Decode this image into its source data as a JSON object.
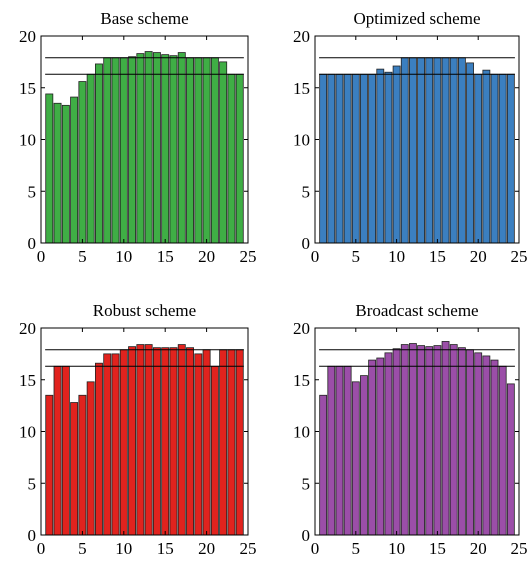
{
  "chart_data": [
    {
      "type": "bar",
      "title": "Base scheme",
      "color": "#3fae45",
      "x": [
        1,
        2,
        3,
        4,
        5,
        6,
        7,
        8,
        9,
        10,
        11,
        12,
        13,
        14,
        15,
        16,
        17,
        18,
        19,
        20,
        21,
        22,
        23,
        24
      ],
      "values": [
        14.4,
        13.5,
        13.3,
        14.1,
        15.6,
        16.3,
        17.3,
        17.9,
        17.9,
        17.9,
        18.0,
        18.3,
        18.5,
        18.4,
        18.2,
        18.1,
        18.4,
        17.9,
        17.9,
        17.9,
        17.9,
        17.5,
        16.3,
        16.3
      ],
      "reference_lines": [
        17.9,
        16.3
      ],
      "xlim": [
        0,
        25
      ],
      "ylim": [
        0,
        20
      ],
      "xticks": [
        "0",
        "5",
        "10",
        "15",
        "20",
        "25"
      ],
      "yticks": [
        "0",
        "5",
        "10",
        "15",
        "20"
      ],
      "xlabel": "",
      "ylabel": ""
    },
    {
      "type": "bar",
      "title": "Optimized scheme",
      "color": "#3b7fc0",
      "x": [
        1,
        2,
        3,
        4,
        5,
        6,
        7,
        8,
        9,
        10,
        11,
        12,
        13,
        14,
        15,
        16,
        17,
        18,
        19,
        20,
        21,
        22,
        23,
        24
      ],
      "values": [
        16.3,
        16.3,
        16.3,
        16.3,
        16.3,
        16.3,
        16.3,
        16.8,
        16.5,
        17.1,
        17.9,
        17.9,
        17.9,
        17.9,
        17.9,
        17.9,
        17.9,
        17.9,
        17.4,
        16.3,
        16.7,
        16.3,
        16.3,
        16.3
      ],
      "reference_lines": [
        17.9,
        16.3
      ],
      "xlim": [
        0,
        25
      ],
      "ylim": [
        0,
        20
      ],
      "xticks": [
        "0",
        "5",
        "10",
        "15",
        "20",
        "25"
      ],
      "yticks": [
        "0",
        "5",
        "10",
        "15",
        "20"
      ],
      "xlabel": "",
      "ylabel": ""
    },
    {
      "type": "bar",
      "title": "Robust scheme",
      "color": "#e1231e",
      "x": [
        1,
        2,
        3,
        4,
        5,
        6,
        7,
        8,
        9,
        10,
        11,
        12,
        13,
        14,
        15,
        16,
        17,
        18,
        19,
        20,
        21,
        22,
        23,
        24
      ],
      "values": [
        13.5,
        16.3,
        16.3,
        12.8,
        13.5,
        14.8,
        16.6,
        17.5,
        17.5,
        17.9,
        18.2,
        18.4,
        18.4,
        18.1,
        18.1,
        18.1,
        18.4,
        18.1,
        17.5,
        17.9,
        16.3,
        17.9,
        17.9,
        17.9
      ],
      "reference_lines": [
        17.9,
        16.3
      ],
      "xlim": [
        0,
        25
      ],
      "ylim": [
        0,
        20
      ],
      "xticks": [
        "0",
        "5",
        "10",
        "15",
        "20",
        "25"
      ],
      "yticks": [
        "0",
        "5",
        "10",
        "15",
        "20"
      ],
      "xlabel": "",
      "ylabel": ""
    },
    {
      "type": "bar",
      "title": "Broadcast scheme",
      "color": "#9b4ea8",
      "x": [
        1,
        2,
        3,
        4,
        5,
        6,
        7,
        8,
        9,
        10,
        11,
        12,
        13,
        14,
        15,
        16,
        17,
        18,
        19,
        20,
        21,
        22,
        23,
        24
      ],
      "values": [
        13.5,
        16.3,
        16.3,
        16.3,
        14.8,
        15.4,
        16.9,
        17.1,
        17.6,
        18.0,
        18.4,
        18.5,
        18.3,
        18.2,
        18.3,
        18.7,
        18.4,
        18.1,
        17.9,
        17.6,
        17.3,
        16.9,
        16.3,
        14.6
      ],
      "reference_lines": [
        17.9,
        16.3
      ],
      "xlim": [
        0,
        25
      ],
      "ylim": [
        0,
        20
      ],
      "xticks": [
        "0",
        "5",
        "10",
        "15",
        "20",
        "25"
      ],
      "yticks": [
        "0",
        "5",
        "10",
        "15",
        "20"
      ],
      "xlabel": "",
      "ylabel": ""
    }
  ]
}
